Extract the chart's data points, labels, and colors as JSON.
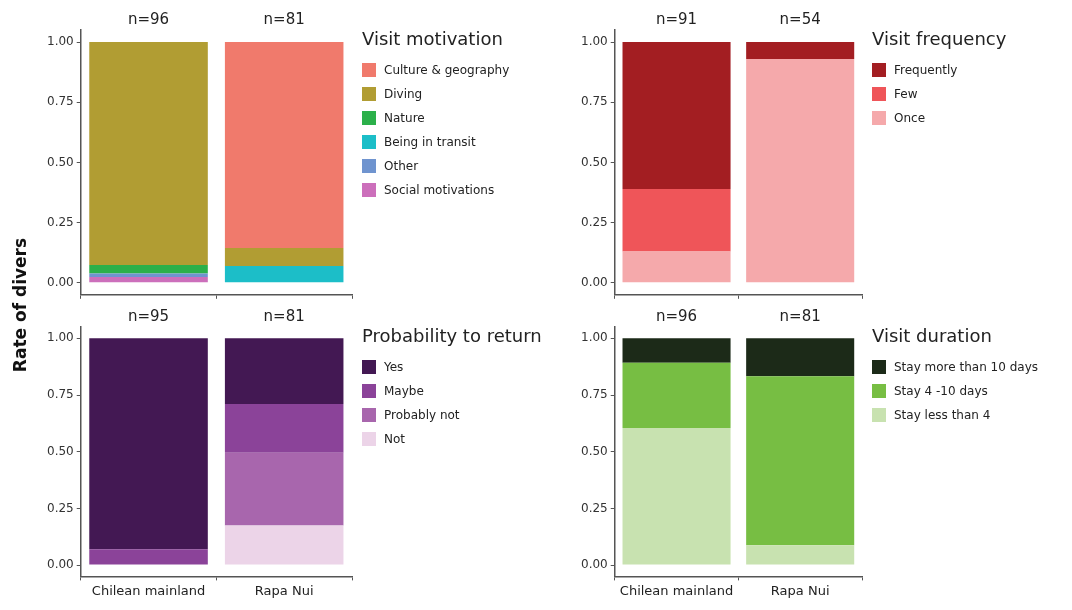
{
  "chart_data": [
    {
      "type": "bar",
      "stacked": true,
      "ylabel": "Rate of divers",
      "legend_title": "Visit motivation",
      "legend": "right",
      "tick_labels": "y",
      "categories": [
        null,
        null
      ],
      "ylim": [
        -0.05,
        1.05
      ],
      "yticks": [
        {
          "value": 0,
          "label": "0.00"
        },
        {
          "value": 0.25,
          "label": "0.25"
        },
        {
          "value": 0.5,
          "label": "0.50"
        },
        {
          "value": 0.75,
          "label": "0.75"
        },
        {
          "value": 1,
          "label": "1.00"
        }
      ],
      "grid": false,
      "annotations": [
        "n=96",
        "n=81"
      ],
      "series": [
        {
          "name": "Social motivations",
          "color": "#cc6fbb",
          "values": [
            0.024,
            null
          ]
        },
        {
          "name": "Other",
          "color": "#6f94cf",
          "values": [
            0.015,
            null
          ]
        },
        {
          "name": "Being in transit",
          "color": "#1cbec8",
          "values": [
            null,
            0.07
          ]
        },
        {
          "name": "Nature",
          "color": "#2bb04a",
          "values": [
            0.035,
            null
          ]
        },
        {
          "name": "Diving",
          "color": "#b19d33",
          "values": [
            0.926,
            0.074
          ]
        },
        {
          "name": "Culture & geography",
          "color": "#f07a6c",
          "values": [
            null,
            0.856
          ]
        }
      ]
    },
    {
      "type": "bar",
      "stacked": true,
      "legend_title": "Visit frequency",
      "legend": "right",
      "tick_labels": "y",
      "categories": [
        null,
        null
      ],
      "ylim": [
        -0.05,
        1.05
      ],
      "yticks": [
        {
          "value": 0,
          "label": "0.00"
        },
        {
          "value": 0.25,
          "label": "0.25"
        },
        {
          "value": 0.5,
          "label": "0.50"
        },
        {
          "value": 0.75,
          "label": "0.75"
        },
        {
          "value": 1,
          "label": "1.00"
        }
      ],
      "grid": false,
      "annotations": [
        "n=91",
        "n=54"
      ],
      "series": [
        {
          "name": "Once",
          "color": "#f5a9ab",
          "values": [
            0.13,
            0.93
          ]
        },
        {
          "name": "Few",
          "color": "#ef5559",
          "values": [
            0.26,
            null
          ]
        },
        {
          "name": "Frequently",
          "color": "#a31e22",
          "values": [
            0.61,
            0.07
          ]
        }
      ]
    },
    {
      "type": "bar",
      "stacked": true,
      "legend_title": "Probability to return",
      "legend": "right",
      "categories": [
        "Chilean mainland",
        "Rapa Nui"
      ],
      "ylim": [
        -0.05,
        1.05
      ],
      "yticks": [
        {
          "value": 0,
          "label": "0.00"
        },
        {
          "value": 0.25,
          "label": "0.25"
        },
        {
          "value": 0.5,
          "label": "0.50"
        },
        {
          "value": 0.75,
          "label": "0.75"
        },
        {
          "value": 1,
          "label": "1.00"
        }
      ],
      "grid": false,
      "annotations": [
        "n=95",
        "n=81"
      ],
      "series": [
        {
          "name": "Not",
          "color": "#ecd4e8",
          "values": [
            null,
            0.175
          ]
        },
        {
          "name": "Probably not",
          "color": "#a866ad",
          "values": [
            null,
            0.32
          ]
        },
        {
          "name": "Maybe",
          "color": "#8b4399",
          "values": [
            0.07,
            0.215
          ]
        },
        {
          "name": "Yes",
          "color": "#431853",
          "values": [
            0.93,
            0.29
          ]
        }
      ]
    },
    {
      "type": "bar",
      "stacked": true,
      "legend_title": "Visit duration",
      "legend": "right",
      "categories": [
        "Chilean mainland",
        "Rapa Nui"
      ],
      "ylim": [
        -0.05,
        1.05
      ],
      "yticks": [
        {
          "value": 0,
          "label": "0.00"
        },
        {
          "value": 0.25,
          "label": "0.25"
        },
        {
          "value": 0.5,
          "label": "0.50"
        },
        {
          "value": 0.75,
          "label": "0.75"
        },
        {
          "value": 1,
          "label": "1.00"
        }
      ],
      "grid": false,
      "annotations": [
        "n=96",
        "n=81"
      ],
      "series": [
        {
          "name": "Stay less than 4",
          "color": "#c8e2b0",
          "values": [
            0.605,
            0.087
          ]
        },
        {
          "name": "Stay 4 -10 days",
          "color": "#77be43",
          "values": [
            0.287,
            0.746
          ]
        },
        {
          "name": "Stay more than 10 days",
          "color": "#1c2a18",
          "values": [
            0.108,
            0.167
          ]
        }
      ]
    }
  ]
}
